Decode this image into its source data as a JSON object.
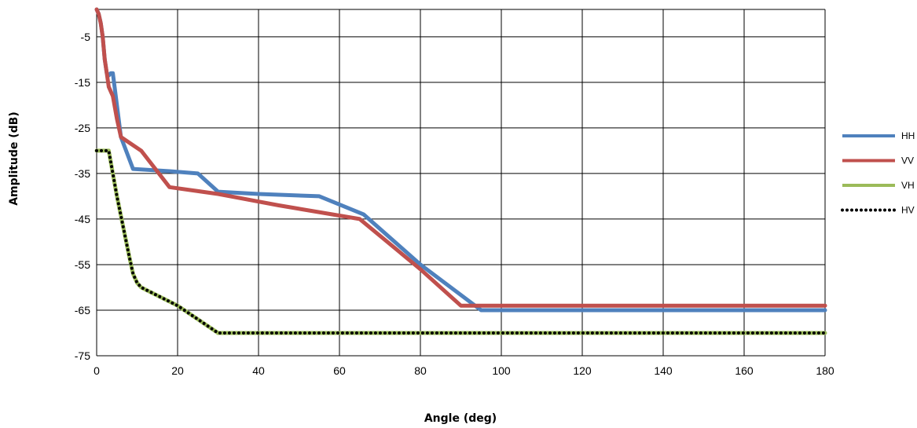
{
  "chart_data": {
    "type": "line",
    "xlabel": "Angle (deg)",
    "ylabel": "Amplitude (dB)",
    "xlim": [
      0,
      180
    ],
    "ylim": [
      -75,
      1
    ],
    "x_ticks": [
      "0",
      "20",
      "40",
      "60",
      "80",
      "100",
      "120",
      "140",
      "160",
      "180"
    ],
    "x_tick_values": [
      0,
      20,
      40,
      60,
      80,
      100,
      120,
      140,
      160,
      180
    ],
    "y_ticks": [
      "-5",
      "-15",
      "-25",
      "-35",
      "-45",
      "-55",
      "-65",
      "-75"
    ],
    "y_tick_values": [
      -5,
      -15,
      -25,
      -35,
      -45,
      -55,
      -65,
      -75
    ],
    "grid": true,
    "legend_position": "right",
    "series": [
      {
        "name": "HH",
        "color": "#4F81BD",
        "style": "solid",
        "x": [
          0,
          0.5,
          1,
          1.5,
          2,
          2.5,
          3,
          3.5,
          4,
          5,
          6,
          9,
          18,
          25,
          30,
          40,
          55,
          66,
          80,
          95,
          100,
          180
        ],
        "y": [
          1,
          0,
          -2,
          -5,
          -10,
          -13,
          -13.5,
          -13,
          -13,
          -20,
          -27,
          -34,
          -34.5,
          -35,
          -39,
          -39.5,
          -40,
          -44,
          -55,
          -65,
          -65,
          -65
        ]
      },
      {
        "name": "VV",
        "color": "#C0504D",
        "style": "solid",
        "x": [
          0,
          0.5,
          1,
          1.5,
          2,
          2.5,
          3,
          4,
          5,
          6,
          11,
          18,
          30,
          45,
          65,
          80,
          90,
          100,
          180
        ],
        "y": [
          1,
          0,
          -2,
          -5,
          -10,
          -13,
          -16,
          -18,
          -23,
          -27,
          -30,
          -38,
          -39.5,
          -42,
          -45,
          -56,
          -64,
          -64,
          -64
        ]
      },
      {
        "name": "VH",
        "color": "#9BBB59",
        "style": "solid",
        "x": [
          0,
          3,
          5,
          8,
          9,
          10,
          11,
          20,
          25,
          30,
          100,
          180
        ],
        "y": [
          -30,
          -30,
          -40,
          -53,
          -57,
          -59,
          -60,
          -64,
          -67,
          -70,
          -70,
          -70
        ]
      },
      {
        "name": "HV",
        "color": "#000000",
        "style": "dotted",
        "x": [
          0,
          3,
          5,
          8,
          9,
          10,
          11,
          20,
          25,
          30,
          100,
          180
        ],
        "y": [
          -30,
          -30,
          -40,
          -53,
          -57,
          -59,
          -60,
          -64,
          -67,
          -70,
          -70,
          -70
        ]
      }
    ]
  }
}
